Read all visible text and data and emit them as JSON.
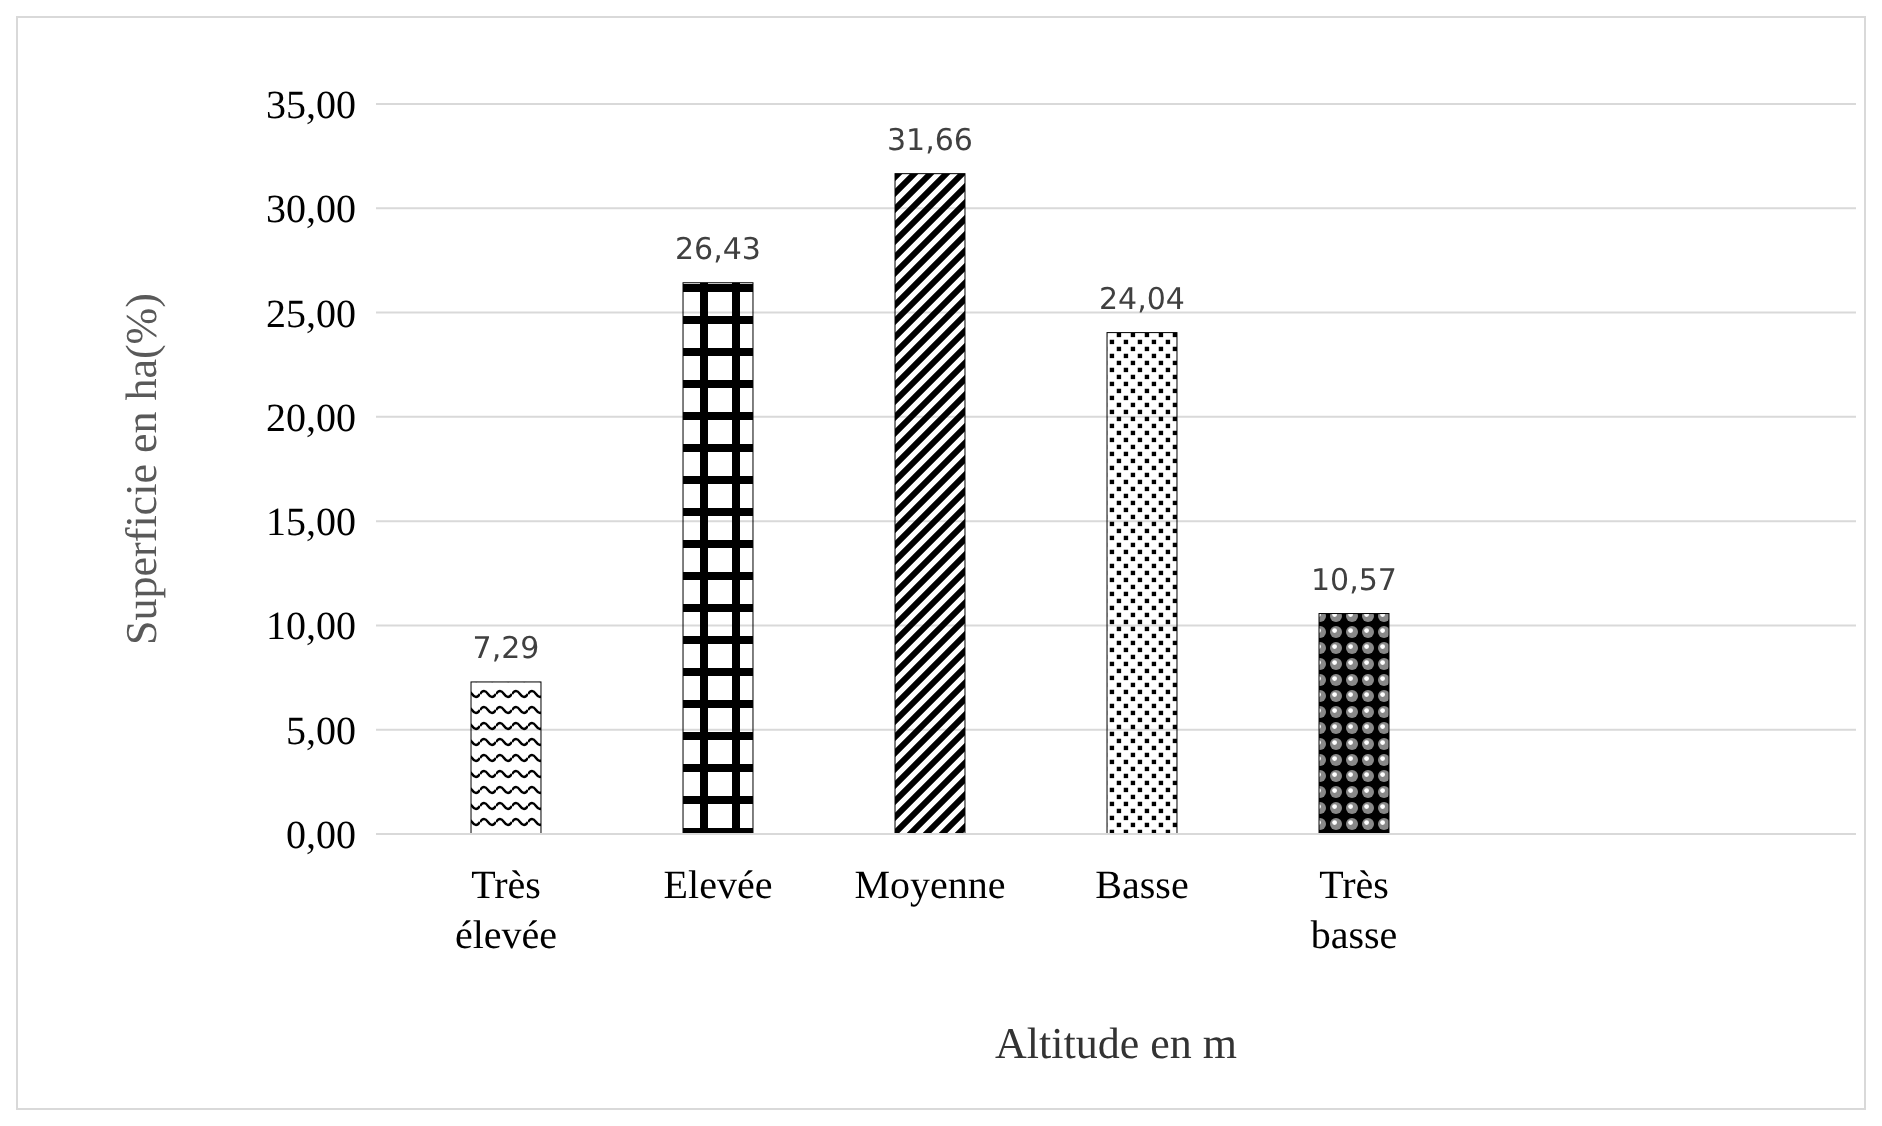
{
  "chart_data": {
    "type": "bar",
    "xlabel": "Altitude en m",
    "ylabel": "Superficie en ha(%)",
    "categories": [
      "Très élevée",
      "Elevée",
      "Moyenne",
      "Basse",
      "Très basse"
    ],
    "values": [
      7.29,
      26.43,
      31.66,
      24.04,
      10.57
    ],
    "value_labels": [
      "7,29",
      "26,43",
      "31,66",
      "24,04",
      "10,57"
    ],
    "color": "#000000",
    "ylim": [
      0,
      35
    ],
    "yticks": [
      {
        "value": 0,
        "label": "0,00"
      },
      {
        "value": 5,
        "label": "5,00"
      },
      {
        "value": 10,
        "label": "10,00"
      },
      {
        "value": 15,
        "label": "15,00"
      },
      {
        "value": 20,
        "label": "20,00"
      },
      {
        "value": 25,
        "label": "25,00"
      },
      {
        "value": 30,
        "label": "30,00"
      },
      {
        "value": 35,
        "label": "35,00"
      }
    ],
    "grid": "y"
  }
}
